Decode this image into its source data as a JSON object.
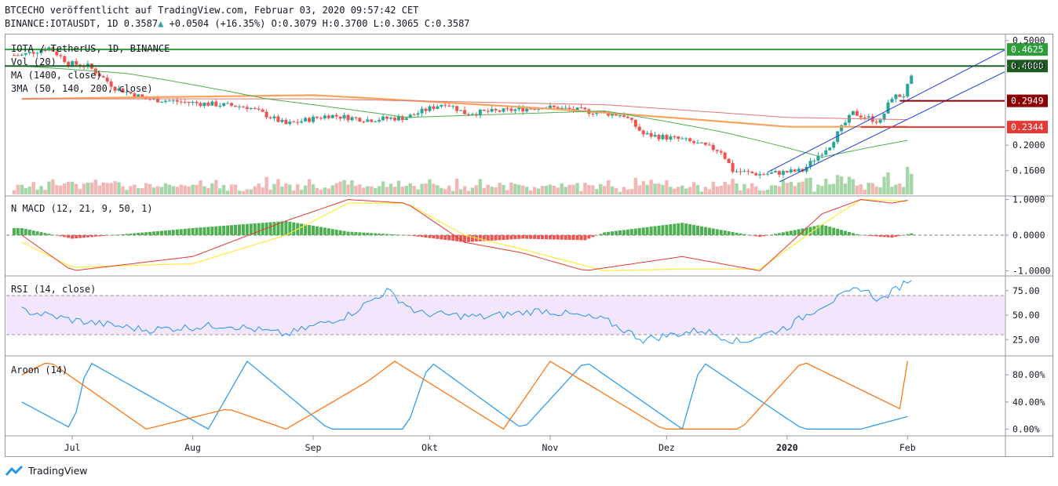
{
  "header": {
    "line1": "BTCECHO veröffentlicht auf TradingView.com, Februar 03, 2020 09:57:42 CET",
    "symbol": "BINANCE:IOTAUSDT, 1D",
    "last": "0.3587",
    "arrow": "▲",
    "change": "+0.0504 (+16.35%)",
    "o": "O:0.3079",
    "h": "H:0.3700",
    "l": "L:0.3065",
    "c": "C:0.3587"
  },
  "footer": {
    "brand": "TradingView",
    "logo_icon": "tradingview-logo-icon"
  },
  "colors": {
    "up": "#26a69a",
    "down": "#ef5350",
    "vol_up": "#a5d6a7",
    "vol_down": "#f0b7b5",
    "ma1400": "#f7a35c",
    "sma50": "#4caf50",
    "sma140": "#e57373",
    "channel": "#1e3ce8",
    "hline_green": "#2e9e3a",
    "hline_dark": "#1b5e20",
    "hline_darkred": "#8b0000",
    "hline_red": "#e53935",
    "macd_sig": "#ffeb3b",
    "macd_line": "#e53935",
    "rsi": "#2196f3",
    "rsi_band": "#f3e5fb",
    "aroon_up": "#ff6d00",
    "aroon_down": "#2196f3"
  },
  "chart_data": [
    {
      "type": "candlestick",
      "panel": "price",
      "labels": [
        "IOTA / TetherUS, 1D, BINANCE",
        "Vol (20)",
        "MA (1400, close)",
        "3MA (50, 140, 200, close)"
      ],
      "x_ticks": [
        "Jul",
        "Aug",
        "Sep",
        "Okt",
        "Nov",
        "Dez",
        "2020",
        "Feb"
      ],
      "y_ticks": [
        "0.5000",
        "0.4000",
        "0.2000",
        "0.1600"
      ],
      "y_scale": "log",
      "ylim": [
        0.13,
        0.52
      ],
      "price_levels": [
        {
          "label": "0.4625",
          "value": 0.4625,
          "color": "#2e9e3a"
        },
        {
          "label": "0.4000",
          "value": 0.4,
          "color": "#1b5e20"
        },
        {
          "label": "0.2949",
          "value": 0.2949,
          "color": "#8b0000"
        },
        {
          "label": "0.2344",
          "value": 0.2344,
          "color": "#e53935"
        }
      ],
      "close_trend": [
        [
          "2019-06-18",
          0.44
        ],
        [
          "2019-06-25",
          0.47
        ],
        [
          "2019-06-30",
          0.41
        ],
        [
          "2019-07-05",
          0.4
        ],
        [
          "2019-07-12",
          0.33
        ],
        [
          "2019-07-20",
          0.3
        ],
        [
          "2019-08-01",
          0.29
        ],
        [
          "2019-08-15",
          0.28
        ],
        [
          "2019-08-25",
          0.24
        ],
        [
          "2019-09-05",
          0.26
        ],
        [
          "2019-09-15",
          0.25
        ],
        [
          "2019-09-25",
          0.255
        ],
        [
          "2019-10-05",
          0.29
        ],
        [
          "2019-10-10",
          0.265
        ],
        [
          "2019-10-20",
          0.27
        ],
        [
          "2019-10-30",
          0.28
        ],
        [
          "2019-11-10",
          0.27
        ],
        [
          "2019-11-20",
          0.26
        ],
        [
          "2019-11-25",
          0.22
        ],
        [
          "2019-12-05",
          0.21
        ],
        [
          "2019-12-15",
          0.19
        ],
        [
          "2019-12-18",
          0.16
        ],
        [
          "2019-12-25",
          0.155
        ],
        [
          "2020-01-05",
          0.16
        ],
        [
          "2020-01-12",
          0.2
        ],
        [
          "2020-01-18",
          0.265
        ],
        [
          "2020-01-25",
          0.245
        ],
        [
          "2020-01-28",
          0.305
        ],
        [
          "2020-01-31",
          0.31
        ],
        [
          "2020-02-02",
          0.3587
        ]
      ],
      "ma1400": [
        [
          "2019-06-18",
          0.3
        ],
        [
          "2019-09-01",
          0.31
        ],
        [
          "2019-11-01",
          0.275
        ],
        [
          "2020-01-01",
          0.235
        ],
        [
          "2020-02-02",
          0.235
        ]
      ],
      "sma50": [
        [
          "2019-06-18",
          0.4
        ],
        [
          "2019-07-15",
          0.375
        ],
        [
          "2019-08-20",
          0.3
        ],
        [
          "2019-09-25",
          0.255
        ],
        [
          "2019-11-15",
          0.27
        ],
        [
          "2019-12-15",
          0.225
        ],
        [
          "2020-01-10",
          0.18
        ],
        [
          "2020-02-02",
          0.21
        ]
      ],
      "sma140": [
        [
          "2019-06-18",
          0.3
        ],
        [
          "2019-09-01",
          0.3
        ],
        [
          "2019-11-15",
          0.285
        ],
        [
          "2020-01-01",
          0.255
        ],
        [
          "2020-02-02",
          0.25
        ]
      ]
    },
    {
      "type": "histogram",
      "panel": "macd",
      "label": "N MACD (12, 21, 9, 50, 1)",
      "y_ticks": [
        "1.0000",
        "0.0000",
        "-1.0000"
      ],
      "ylim": [
        -1.0,
        1.0
      ],
      "signal": [
        [
          "2019-06-18",
          -0.2
        ],
        [
          "2019-07-01",
          -0.9
        ],
        [
          "2019-08-01",
          -0.8
        ],
        [
          "2019-08-25",
          0.0
        ],
        [
          "2019-09-10",
          0.9
        ],
        [
          "2019-09-25",
          0.9
        ],
        [
          "2019-10-10",
          0.0
        ],
        [
          "2019-10-25",
          -0.4
        ],
        [
          "2019-11-15",
          -1.0
        ],
        [
          "2019-12-05",
          -0.95
        ],
        [
          "2019-12-25",
          -0.95
        ],
        [
          "2020-01-10",
          0.3
        ],
        [
          "2020-01-20",
          1.0
        ],
        [
          "2020-02-02",
          0.95
        ]
      ],
      "line": [
        [
          "2019-06-18",
          0.0
        ],
        [
          "2019-07-01",
          -1.0
        ],
        [
          "2019-08-01",
          -0.6
        ],
        [
          "2019-08-25",
          0.4
        ],
        [
          "2019-09-10",
          1.0
        ],
        [
          "2019-09-25",
          0.9
        ],
        [
          "2019-10-10",
          -0.2
        ],
        [
          "2019-10-25",
          -0.5
        ],
        [
          "2019-11-10",
          -1.0
        ],
        [
          "2019-12-05",
          -0.6
        ],
        [
          "2019-12-25",
          -1.0
        ],
        [
          "2020-01-10",
          0.6
        ],
        [
          "2020-01-20",
          1.0
        ],
        [
          "2020-01-28",
          0.9
        ],
        [
          "2020-02-02",
          1.0
        ]
      ]
    },
    {
      "type": "line",
      "panel": "rsi",
      "label": "RSI (14, close)",
      "y_ticks": [
        "75.00",
        "50.00",
        "25.00"
      ],
      "ylim": [
        10,
        90
      ],
      "band": [
        30,
        70
      ],
      "values": [
        [
          "2019-06-18",
          55
        ],
        [
          "2019-07-01",
          45
        ],
        [
          "2019-07-20",
          35
        ],
        [
          "2019-08-10",
          40
        ],
        [
          "2019-08-25",
          30
        ],
        [
          "2019-09-10",
          50
        ],
        [
          "2019-09-20",
          75
        ],
        [
          "2019-09-28",
          52
        ],
        [
          "2019-10-15",
          48
        ],
        [
          "2019-10-30",
          55
        ],
        [
          "2019-11-15",
          45
        ],
        [
          "2019-11-25",
          25
        ],
        [
          "2019-12-10",
          35
        ],
        [
          "2019-12-20",
          22
        ],
        [
          "2020-01-01",
          38
        ],
        [
          "2020-01-10",
          60
        ],
        [
          "2020-01-20",
          78
        ],
        [
          "2020-01-25",
          65
        ],
        [
          "2020-02-02",
          88
        ]
      ]
    },
    {
      "type": "line",
      "panel": "aroon",
      "label": "Aroon (14)",
      "y_ticks": [
        "80.00%",
        "40.00%",
        "0.00%"
      ],
      "ylim": [
        0,
        100
      ],
      "up_series": [
        [
          "2019-06-18",
          80
        ],
        [
          "2019-06-25",
          100
        ],
        [
          "2019-07-20",
          0
        ],
        [
          "2019-08-10",
          30
        ],
        [
          "2019-08-25",
          0
        ],
        [
          "2019-09-15",
          70
        ],
        [
          "2019-09-22",
          100
        ],
        [
          "2019-10-20",
          0
        ],
        [
          "2019-11-01",
          100
        ],
        [
          "2019-11-30",
          0
        ],
        [
          "2019-12-20",
          0
        ],
        [
          "2020-01-05",
          100
        ],
        [
          "2020-01-30",
          30
        ],
        [
          "2020-02-01",
          100
        ]
      ],
      "down_series": [
        [
          "2019-06-18",
          40
        ],
        [
          "2019-07-01",
          0
        ],
        [
          "2019-07-05",
          100
        ],
        [
          "2019-08-05",
          0
        ],
        [
          "2019-08-15",
          100
        ],
        [
          "2019-09-05",
          0
        ],
        [
          "2019-09-25",
          0
        ],
        [
          "2019-10-01",
          100
        ],
        [
          "2019-10-25",
          0
        ],
        [
          "2019-11-10",
          100
        ],
        [
          "2019-12-05",
          0
        ],
        [
          "2019-12-10",
          100
        ],
        [
          "2020-01-05",
          0
        ],
        [
          "2020-01-20",
          0
        ],
        [
          "2020-02-02",
          20
        ]
      ]
    }
  ]
}
